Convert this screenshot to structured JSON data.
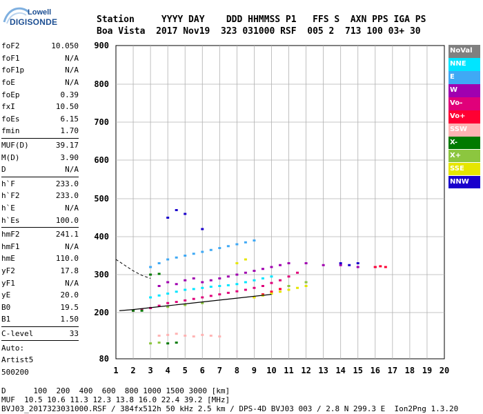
{
  "logo": {
    "line1": "Lowell",
    "line2": "DIGISONDE"
  },
  "header": {
    "line1": "Station     YYYY DAY    DDD HHMMSS P1   FFS S  AXN PPS IGA PS",
    "line2": "Boa Vista  2017 Nov19  323 031000 RSF  005 2  713 100 03+ 30"
  },
  "params": [
    {
      "label": "foF2",
      "value": "10.050"
    },
    {
      "label": "foF1",
      "value": "N/A"
    },
    {
      "label": "foF1p",
      "value": "N/A"
    },
    {
      "label": "foE",
      "value": "N/A"
    },
    {
      "label": "foEp",
      "value": "0.39"
    },
    {
      "label": "fxI",
      "value": "10.50"
    },
    {
      "label": "foEs",
      "value": "6.15"
    },
    {
      "label": "fmin",
      "value": "1.70"
    },
    {
      "divider": true
    },
    {
      "label": "MUF(D)",
      "value": "39.17"
    },
    {
      "label": "M(D)",
      "value": "3.90"
    },
    {
      "label": "D",
      "value": "N/A"
    },
    {
      "divider": true
    },
    {
      "label": "h`F",
      "value": "233.0"
    },
    {
      "label": "h`F2",
      "value": "233.0"
    },
    {
      "label": "h`E",
      "value": "N/A"
    },
    {
      "label": "h`Es",
      "value": "100.0"
    },
    {
      "divider": true
    },
    {
      "label": "hmF2",
      "value": "241.1"
    },
    {
      "label": "hmF1",
      "value": "N/A"
    },
    {
      "label": "hmE",
      "value": "110.0"
    },
    {
      "label": "yF2",
      "value": "17.8"
    },
    {
      "label": "yF1",
      "value": "N/A"
    },
    {
      "label": "yE",
      "value": "20.0"
    },
    {
      "label": "B0",
      "value": "19.5"
    },
    {
      "label": "B1",
      "value": "1.50"
    },
    {
      "divider": true
    },
    {
      "label": "C-level",
      "value": "33"
    },
    {
      "divider": true
    },
    {
      "label": "Auto:",
      "value": ""
    },
    {
      "label": "Artist5",
      "value": ""
    },
    {
      "label": "500200",
      "value": ""
    }
  ],
  "legend": [
    {
      "label": "NoVal",
      "color": "#808080"
    },
    {
      "label": "NNE",
      "color": "#00e5ff"
    },
    {
      "label": "E",
      "color": "#3fa9f5"
    },
    {
      "label": "W",
      "color": "#a000b0"
    },
    {
      "label": "Vo-",
      "color": "#e0007a"
    },
    {
      "label": "Vo+",
      "color": "#ff0033"
    },
    {
      "label": "SSW",
      "color": "#ffb3b3"
    },
    {
      "label": "X-",
      "color": "#007a00"
    },
    {
      "label": "X+",
      "color": "#8cc63f"
    },
    {
      "label": "SSE",
      "color": "#e6e600"
    },
    {
      "label": "NNW",
      "color": "#1a00cc"
    }
  ],
  "footer": {
    "line1": "D      100  200  400  600  800 1000 1500 3000 [km]",
    "line2": "MUF  10.5 10.6 11.3 12.3 13.8 16.0 22.4 39.2 [MHz]",
    "line3": "BVJ03_2017323031000.RSF / 384fx512h 50 kHz 2.5 km / DPS-4D BVJ03 003 / 2.8 N 299.3 E  Ion2Png 1.3.20"
  },
  "chart_data": {
    "type": "scatter",
    "xlim": [
      1,
      20
    ],
    "ylim": [
      80,
      900
    ],
    "x_ticks": [
      "1",
      "2",
      "3",
      "4",
      "5",
      "6",
      "7",
      "8",
      "9",
      "10",
      "11",
      "12",
      "13",
      "14",
      "15",
      "16",
      "17",
      "18",
      "19",
      "20"
    ],
    "y_ticks": [
      "80",
      "200",
      "300",
      "400",
      "500",
      "600",
      "700",
      "800",
      "900"
    ],
    "y_tick_values": [
      80,
      200,
      300,
      400,
      500,
      600,
      700,
      800,
      900
    ],
    "grid": true,
    "series": [
      {
        "name": "Vo-",
        "color": "#e0007a",
        "x": [
          2.0,
          2.5,
          3.0,
          3.5,
          4.0,
          4.5,
          5.0,
          5.5,
          6.0,
          6.5,
          7.0,
          7.5,
          8.0,
          8.5,
          9.0,
          9.5,
          10.0,
          10.5,
          11.0,
          11.5
        ],
        "y": [
          205,
          208,
          212,
          218,
          225,
          228,
          232,
          236,
          240,
          244,
          248,
          252,
          256,
          260,
          265,
          270,
          278,
          285,
          295,
          305
        ]
      },
      {
        "name": "W",
        "color": "#a000b0",
        "x": [
          3.5,
          4.0,
          4.5,
          5.0,
          5.5,
          6.0,
          6.5,
          7.0,
          7.5,
          8.0,
          8.5,
          9.0,
          9.5,
          10.0,
          10.5,
          11.0,
          12.0,
          13.0,
          14.0,
          15.0,
          16.0
        ],
        "y": [
          270,
          280,
          275,
          285,
          290,
          280,
          285,
          290,
          295,
          300,
          305,
          310,
          315,
          320,
          325,
          330,
          330,
          325,
          325,
          320,
          320
        ]
      },
      {
        "name": "NNE",
        "color": "#00e5ff",
        "x": [
          3.0,
          3.5,
          4.0,
          4.5,
          5.0,
          5.5,
          6.0,
          6.5,
          7.0,
          7.5,
          8.0,
          8.5,
          9.0,
          9.5,
          10.0
        ],
        "y": [
          240,
          245,
          250,
          255,
          260,
          262,
          265,
          268,
          270,
          272,
          275,
          280,
          285,
          290,
          295
        ]
      },
      {
        "name": "E",
        "color": "#3fa9f5",
        "x": [
          3.0,
          3.5,
          4.0,
          4.5,
          5.0,
          5.5,
          6.0,
          6.5,
          7.0,
          7.5,
          8.0,
          8.5,
          9.0
        ],
        "y": [
          320,
          330,
          340,
          345,
          350,
          355,
          360,
          365,
          370,
          375,
          380,
          385,
          390
        ]
      },
      {
        "name": "Vo+",
        "color": "#ff0033",
        "x": [
          9.0,
          9.5,
          10.0,
          10.5,
          11.0,
          16.0,
          16.3,
          16.6
        ],
        "y": [
          240,
          248,
          255,
          262,
          270,
          320,
          322,
          320
        ]
      },
      {
        "name": "SSW",
        "color": "#ffb3b3",
        "x": [
          3.5,
          4.0,
          4.5,
          5.0,
          5.5,
          6.0,
          6.5,
          7.0
        ],
        "y": [
          140,
          142,
          145,
          140,
          138,
          142,
          140,
          138
        ]
      },
      {
        "name": "X-",
        "color": "#007a00",
        "x": [
          2.0,
          2.5,
          3.0,
          3.5,
          4.0,
          4.5
        ],
        "y": [
          205,
          205,
          300,
          302,
          120,
          122
        ]
      },
      {
        "name": "X+",
        "color": "#8cc63f",
        "x": [
          3.0,
          3.5,
          4.0,
          5.0,
          6.0,
          10.0,
          11.0,
          12.0
        ],
        "y": [
          120,
          122,
          215,
          220,
          225,
          250,
          270,
          280
        ]
      },
      {
        "name": "SSE",
        "color": "#e6e600",
        "x": [
          9.0,
          9.5,
          10.0,
          10.5,
          11.0,
          11.5,
          12.0,
          8.0,
          8.5
        ],
        "y": [
          240,
          245,
          250,
          255,
          260,
          265,
          270,
          330,
          340
        ]
      },
      {
        "name": "NNW",
        "color": "#1a00cc",
        "x": [
          4.0,
          4.5,
          5.0,
          6.0,
          14.0,
          14.5,
          15.0
        ],
        "y": [
          450,
          470,
          460,
          420,
          330,
          325,
          330
        ]
      }
    ],
    "trace": {
      "x": [
        1.2,
        2.0,
        3.0,
        4.0,
        5.0,
        6.0,
        7.0,
        8.0,
        9.0,
        10.0
      ],
      "y": [
        205,
        208,
        213,
        218,
        223,
        228,
        233,
        238,
        243,
        248
      ]
    },
    "dashed_trace": {
      "x": [
        1.0,
        1.5,
        2.0,
        2.5,
        3.0
      ],
      "y": [
        340,
        325,
        310,
        298,
        290
      ]
    }
  }
}
